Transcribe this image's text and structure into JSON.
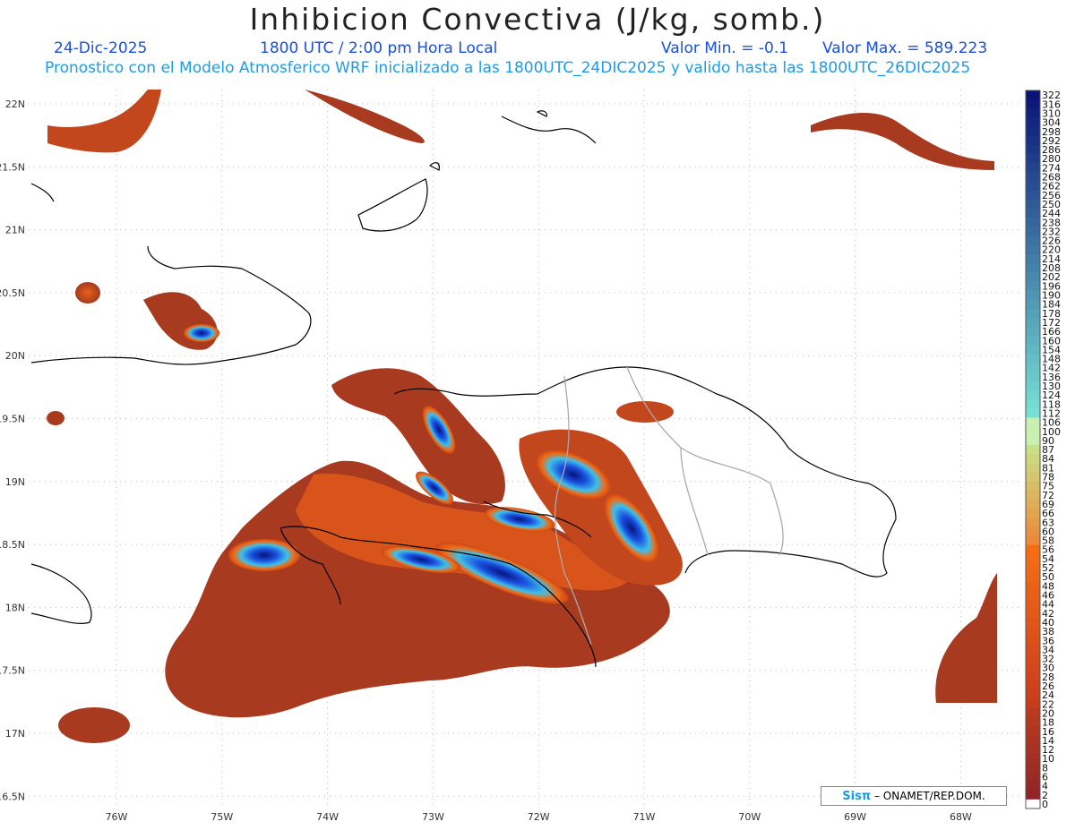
{
  "header": {
    "title": "Inhibicion Convectiva (J/kg, somb.)",
    "date": "24-Dic-2025",
    "time": "1800 UTC / 2:00 pm Hora Local",
    "valor_min": "Valor Min. = -0.1",
    "valor_max": "Valor Max. = 589.223",
    "forecast": "Pronostico con el Modelo Atmosferico WRF inicializado a las 1800UTC_24DIC2025 y valido hasta las  1800UTC_26DIC2025"
  },
  "axes": {
    "lat_labels": [
      "22N",
      "21.5N",
      "21N",
      "20.5N",
      "20N",
      "19.5N",
      "19N",
      "18.5N",
      "18N",
      "17.5N",
      "17N",
      "16.5N"
    ],
    "lon_labels": [
      "76W",
      "75W",
      "74W",
      "73W",
      "72W",
      "71W",
      "70W",
      "69W",
      "68W"
    ],
    "lat_range": [
      16.5,
      22
    ],
    "lon_range": [
      -76.8,
      -67.4
    ]
  },
  "colorbar": {
    "labels": [
      "322",
      "316",
      "310",
      "304",
      "298",
      "292",
      "286",
      "280",
      "274",
      "268",
      "262",
      "256",
      "250",
      "244",
      "238",
      "232",
      "226",
      "220",
      "214",
      "208",
      "202",
      "196",
      "190",
      "184",
      "178",
      "172",
      "166",
      "160",
      "154",
      "148",
      "142",
      "136",
      "130",
      "124",
      "118",
      "112",
      "106",
      "100",
      "90",
      "87",
      "84",
      "81",
      "78",
      "75",
      "72",
      "69",
      "66",
      "63",
      "60",
      "58",
      "56",
      "54",
      "52",
      "50",
      "48",
      "46",
      "44",
      "42",
      "40",
      "38",
      "36",
      "34",
      "32",
      "30",
      "28",
      "26",
      "24",
      "22",
      "20",
      "18",
      "16",
      "14",
      "12",
      "10",
      "8",
      "6",
      "4",
      "2",
      "0"
    ]
  },
  "colors": {
    "low_cin": "#9a3520",
    "mid_cin": "#d9591c",
    "high_cin": "#1a4fe0",
    "max_cin": "#0a1a7a",
    "coast": "#000000",
    "border": "#aaaaaa"
  },
  "credit": {
    "sis": "Sisπ",
    "org": "– ONAMET/REP.DOM."
  }
}
